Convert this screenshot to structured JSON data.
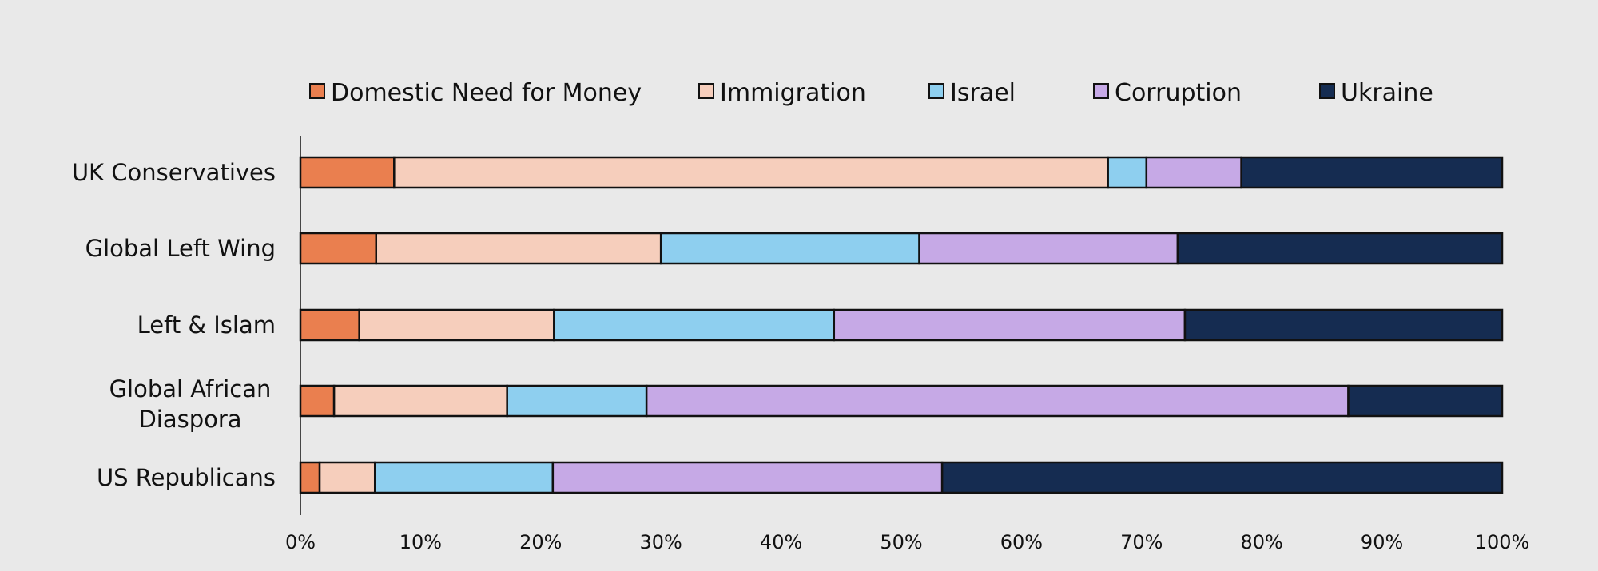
{
  "chart_data": {
    "type": "bar",
    "orientation": "horizontal",
    "stacked": true,
    "subtitle": "",
    "categories": [
      [
        "UK Conservatives"
      ],
      [
        "Global Left Wing"
      ],
      [
        "Left & Islam"
      ],
      [
        "Global African",
        "Diaspora"
      ],
      [
        "US Republicans"
      ]
    ],
    "series": [
      {
        "name": "Domestic Need for Money",
        "color": "#ea7f4f",
        "values": [
          7.8,
          6.3,
          4.9,
          2.8,
          1.6
        ]
      },
      {
        "name": "Immigration",
        "color": "#f6cebc",
        "values": [
          59.4,
          23.7,
          16.2,
          14.4,
          4.6
        ]
      },
      {
        "name": "Israel",
        "color": "#8ecfef",
        "values": [
          3.2,
          21.5,
          23.3,
          11.6,
          14.8
        ]
      },
      {
        "name": "Corruption",
        "color": "#c6a9e6",
        "values": [
          7.9,
          21.5,
          29.2,
          58.4,
          32.4
        ]
      },
      {
        "name": "Ukraine",
        "color": "#152c51",
        "values": [
          21.7,
          27.0,
          26.4,
          12.8,
          46.6
        ]
      }
    ],
    "xlim": [
      0,
      100
    ],
    "xticks": [
      "0%",
      "10%",
      "20%",
      "30%",
      "40%",
      "50%",
      "60%",
      "70%",
      "80%",
      "90%",
      "100%"
    ],
    "legend_position": "top",
    "grid": false,
    "xlabel": "",
    "ylabel": ""
  }
}
